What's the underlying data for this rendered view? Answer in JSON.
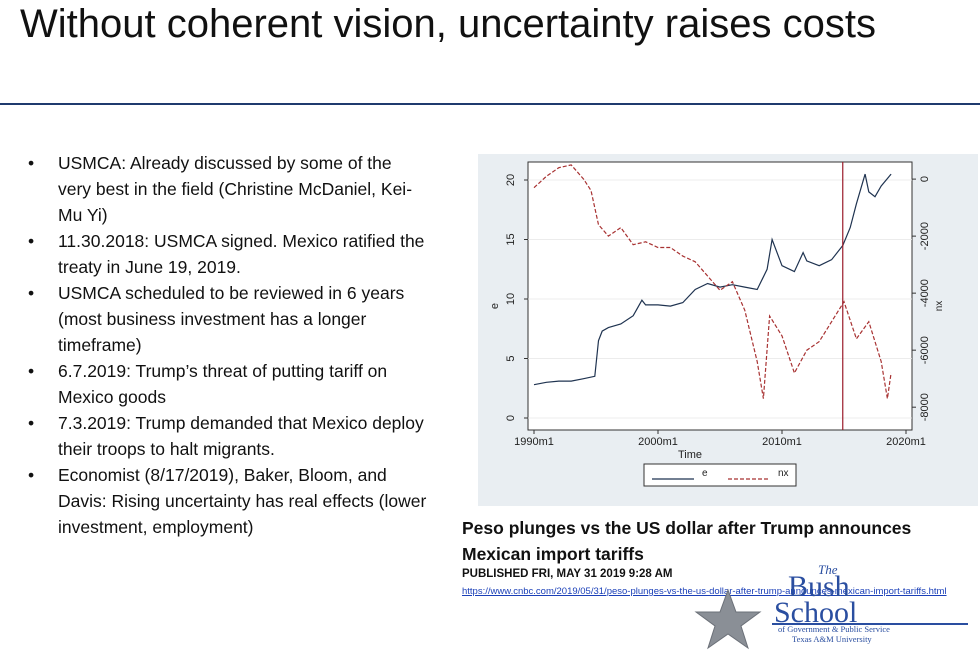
{
  "slide": {
    "title": "Without coherent vision, uncertainty raises costs",
    "bullets": [
      "USMCA: Already discussed by some of the very best in the field (Christine McDaniel, Kei-Mu Yi)",
      "11.30.2018: USMCA signed. Mexico ratified the treaty in June 19, 2019.",
      "USMCA scheduled to be reviewed in 6 years (most business investment has a longer timeframe)",
      "6.7.2019: Trump’s threat of putting tariff on Mexico goods",
      "7.3.2019: Trump demanded that Mexico deploy their troops to halt migrants.",
      "Economist (8/17/2019), Baker, Bloom, and Davis: Rising uncertainty has real effects (lower investment, employment)"
    ],
    "bullet_glyph": "•"
  },
  "article": {
    "title": "Peso plunges vs the US dollar after Trump announces Mexican import tariffs",
    "published": "PUBLISHED FRI, MAY 31 2019  9:28 AM",
    "url": "https://www.cnbc.com/2019/05/31/peso-plunges-vs-the-us-dollar-after-trump-announces-mexican-import-tariffs.html"
  },
  "logo": {
    "the": "The",
    "bush": "Bush",
    "school": "School",
    "line1": "of Government & Public Service",
    "line2": "Texas A&M University",
    "icon": "star-icon",
    "color": "#2a4ea0"
  },
  "chart_data": {
    "type": "line",
    "xlabel": "Time",
    "ylabel_left": "e",
    "ylabel_right": "nx",
    "xticks": [
      "1990m1",
      "2000m1",
      "2010m1",
      "2020m1"
    ],
    "xlim": [
      1990,
      2020
    ],
    "yticks_left": [
      "0",
      "5",
      "10",
      "15",
      "20"
    ],
    "ylim_left": [
      0,
      20
    ],
    "yticks_right": [
      "0",
      "-2000",
      "-4000",
      "-6000",
      "-8000"
    ],
    "ylim_right": [
      -8800,
      600
    ],
    "vline_x": 2014.9,
    "series": [
      {
        "name": "e",
        "axis": "left",
        "color": "#1f3350",
        "style": "solid",
        "x": [
          1990,
          1991,
          1992,
          1993,
          1994,
          1994.9,
          1995.2,
          1995.5,
          1996,
          1997,
          1998,
          1998.7,
          1999,
          2000,
          2001,
          2002,
          2003,
          2004,
          2005,
          2006,
          2007,
          2008,
          2008.8,
          2009.2,
          2010,
          2011,
          2011.7,
          2012,
          2013,
          2014,
          2014.9,
          2015.5,
          2016,
          2016.7,
          2017,
          2017.5,
          2018,
          2018.8
        ],
        "y": [
          2.8,
          3.0,
          3.1,
          3.1,
          3.3,
          3.5,
          6.5,
          7.3,
          7.6,
          7.9,
          8.6,
          9.9,
          9.5,
          9.5,
          9.4,
          9.7,
          10.8,
          11.3,
          11.0,
          11.2,
          11.0,
          10.8,
          12.5,
          15.0,
          12.8,
          12.3,
          13.9,
          13.2,
          12.8,
          13.3,
          14.5,
          16.0,
          18.0,
          20.5,
          19.0,
          18.6,
          19.5,
          20.5
        ]
      },
      {
        "name": "nx",
        "axis": "right",
        "color": "#a83232",
        "style": "dashed",
        "x": [
          1990,
          1991,
          1992,
          1993,
          1994,
          1994.6,
          1995.2,
          1996,
          1997,
          1998,
          1999,
          2000,
          2001,
          2002,
          2003,
          2004,
          2005,
          2006,
          2007,
          2008,
          2008.5,
          2009,
          2010,
          2011,
          2012,
          2013,
          2014,
          2015,
          2016,
          2017,
          2018,
          2018.5,
          2018.8
        ],
        "y": [
          -300,
          100,
          400,
          500,
          0,
          -400,
          -1600,
          -2000,
          -1700,
          -2300,
          -2200,
          -2400,
          -2400,
          -2700,
          -2900,
          -3400,
          -3900,
          -3600,
          -4600,
          -6400,
          -7700,
          -4800,
          -5500,
          -6800,
          -6000,
          -5700,
          -5000,
          -4300,
          -5600,
          -5000,
          -6400,
          -7700,
          -6800
        ]
      }
    ],
    "legend": {
      "position": "bottom"
    }
  }
}
